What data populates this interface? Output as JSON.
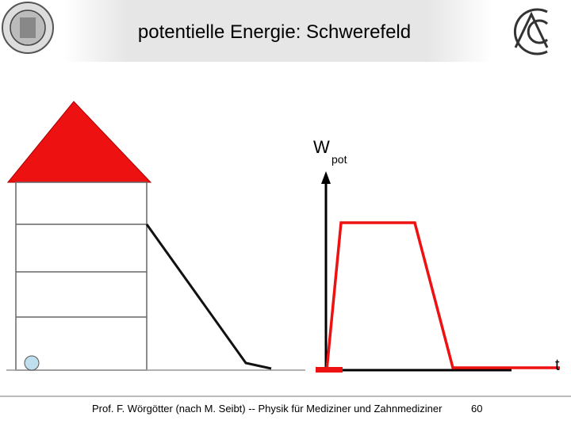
{
  "header": {
    "title": "potentielle Energie: Schwerefeld"
  },
  "diagram": {
    "y_axis_label": "W",
    "y_axis_subscript": "pot",
    "x_axis_label": "t"
  },
  "footer": {
    "text": "Prof. F. Wörgötter (nach M. Seibt) -- Physik für Mediziner und Zahnmediziner",
    "page": "60"
  }
}
